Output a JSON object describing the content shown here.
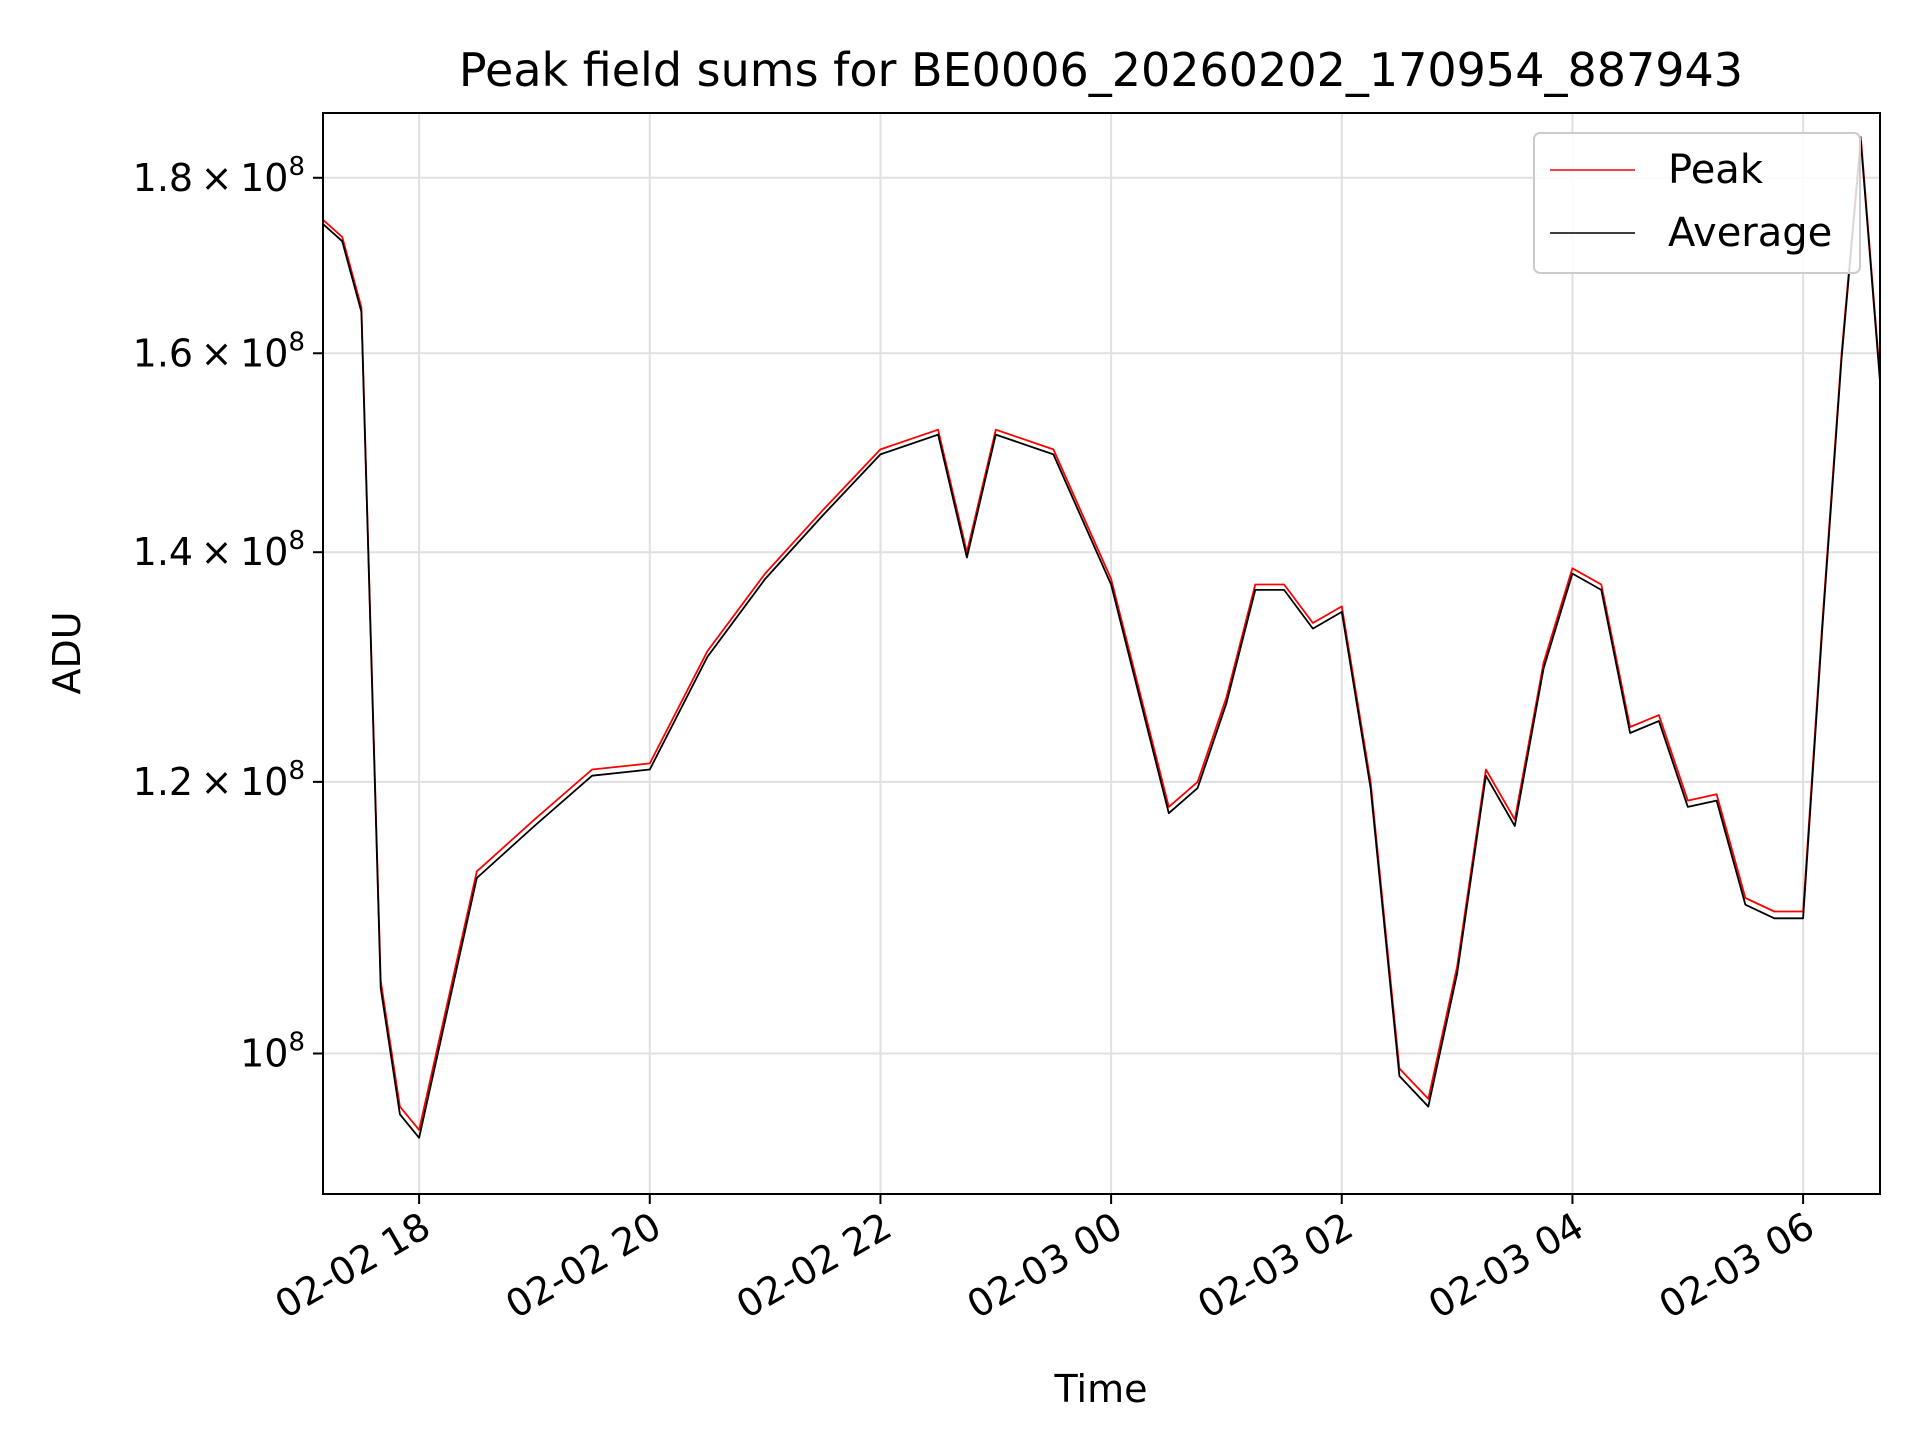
{
  "chart_data": {
    "type": "line",
    "title": "Peak field sums for BE0006_20260202_170954_887943",
    "xlabel": "Time",
    "ylabel": "ADU",
    "y_scale": "log",
    "xlim": [
      "2026-02-02 17:10",
      "2026-02-03 06:40"
    ],
    "ylim": [
      91000000,
      188000000
    ],
    "grid": true,
    "legend_position": "top-right",
    "x_ticks": [
      "02-02 18",
      "02-02 20",
      "02-02 22",
      "02-03 00",
      "02-03 02",
      "02-03 04",
      "02-03 06"
    ],
    "y_ticks": [
      {
        "value": 100000000,
        "mantissa": "",
        "exponent": "8"
      },
      {
        "value": 120000000,
        "mantissa": "1.2",
        "exponent": "8"
      },
      {
        "value": 140000000,
        "mantissa": "1.4",
        "exponent": "8"
      },
      {
        "value": 160000000,
        "mantissa": "1.6",
        "exponent": "8"
      },
      {
        "value": 180000000,
        "mantissa": "1.8",
        "exponent": "8"
      }
    ],
    "x": [
      "2026-02-02 17:10",
      "2026-02-02 17:20",
      "2026-02-02 17:30",
      "2026-02-02 17:40",
      "2026-02-02 17:50",
      "2026-02-02 18:00",
      "2026-02-02 18:30",
      "2026-02-02 19:00",
      "2026-02-02 19:30",
      "2026-02-02 20:00",
      "2026-02-02 20:30",
      "2026-02-02 21:00",
      "2026-02-02 21:30",
      "2026-02-02 22:00",
      "2026-02-02 22:30",
      "2026-02-02 22:45",
      "2026-02-02 23:00",
      "2026-02-02 23:30",
      "2026-02-03 00:00",
      "2026-02-03 00:30",
      "2026-02-03 00:45",
      "2026-02-03 01:00",
      "2026-02-03 01:15",
      "2026-02-03 01:30",
      "2026-02-03 01:45",
      "2026-02-03 02:00",
      "2026-02-03 02:15",
      "2026-02-03 02:30",
      "2026-02-03 02:45",
      "2026-02-03 03:00",
      "2026-02-03 03:15",
      "2026-02-03 03:30",
      "2026-02-03 03:45",
      "2026-02-03 04:00",
      "2026-02-03 04:15",
      "2026-02-03 04:30",
      "2026-02-03 04:45",
      "2026-02-03 05:00",
      "2026-02-03 05:15",
      "2026-02-03 05:30",
      "2026-02-03 05:45",
      "2026-02-03 06:00",
      "2026-02-03 06:10",
      "2026-02-03 06:20",
      "2026-02-03 06:30",
      "2026-02-03 06:40"
    ],
    "series": [
      {
        "name": "Peak",
        "color": "#ff0000",
        "values": [
          175000000,
          173000000,
          165000000,
          105000000,
          96500000,
          95000000,
          113000000,
          117000000,
          121000000,
          121500000,
          131000000,
          138000000,
          144000000,
          150000000,
          152000000,
          140000000,
          152000000,
          150000000,
          137500000,
          118000000,
          120000000,
          127000000,
          137000000,
          137000000,
          133500000,
          135000000,
          120000000,
          99000000,
          97000000,
          106000000,
          121000000,
          117000000,
          130000000,
          138500000,
          137000000,
          124500000,
          125500000,
          118500000,
          119000000,
          111000000,
          110000000,
          110000000,
          133500000,
          160000000,
          185000000,
          157500000
        ]
      },
      {
        "name": "Average",
        "color": "#000000",
        "values": [
          174500000,
          172500000,
          164500000,
          104500000,
          96000000,
          94500000,
          112500000,
          116500000,
          120500000,
          121000000,
          130500000,
          137500000,
          143500000,
          149500000,
          151500000,
          139500000,
          151500000,
          149500000,
          137000000,
          117500000,
          119500000,
          126500000,
          136500000,
          136500000,
          133000000,
          134500000,
          119500000,
          98500000,
          96500000,
          105500000,
          120500000,
          116500000,
          129500000,
          138000000,
          136500000,
          124000000,
          125000000,
          118000000,
          118500000,
          110500000,
          109500000,
          109500000,
          133000000,
          159500000,
          184500000,
          157000000
        ]
      }
    ]
  }
}
